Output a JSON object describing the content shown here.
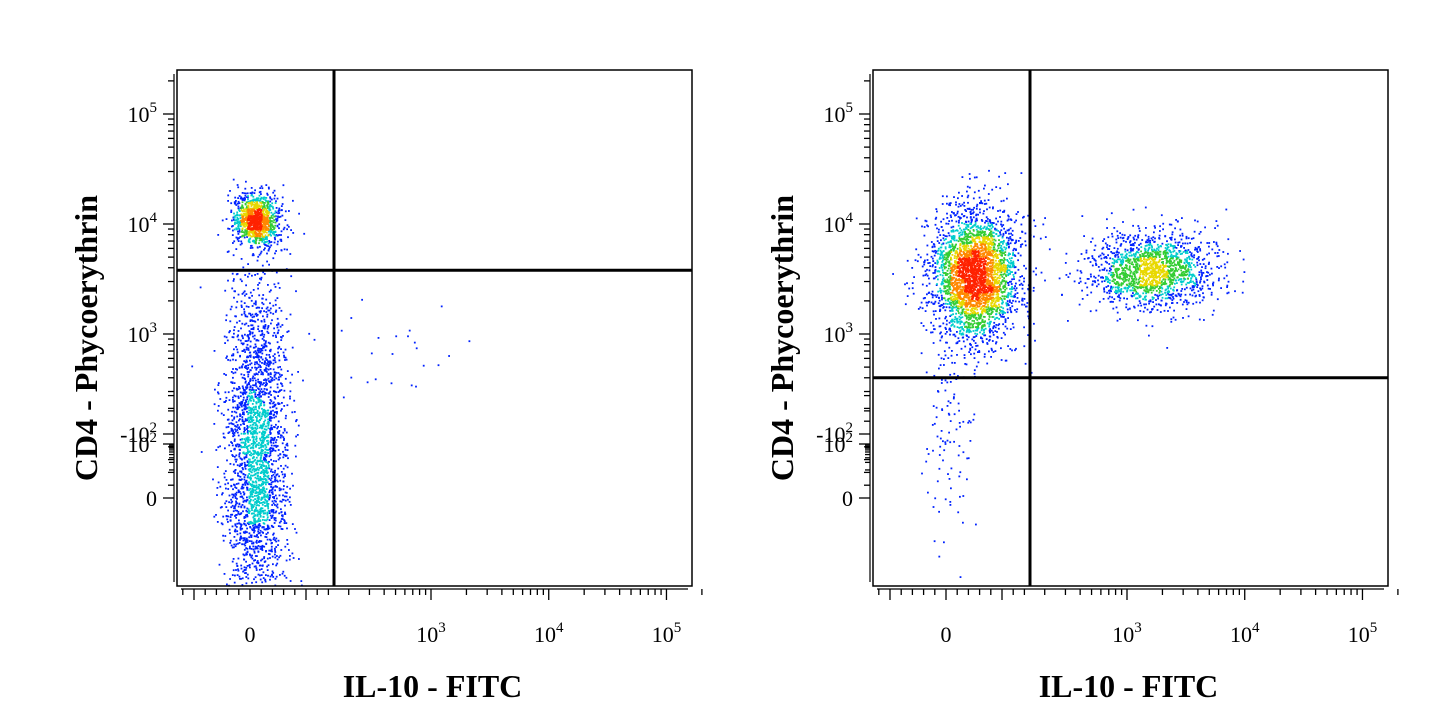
{
  "chart_data": [
    {
      "type": "scatter",
      "subtype": "flow-cytometry-density-dot-plot",
      "xlabel": "IL-10 - FITC",
      "ylabel": "CD4 - Phycoerythrin",
      "xscale": "biexponential",
      "yscale": "biexponential",
      "x_tick_labels": [
        {
          "base": "0",
          "exp": "",
          "value": 0
        },
        {
          "base": "10",
          "exp": "3",
          "value": 1000
        },
        {
          "base": "10",
          "exp": "4",
          "value": 10000
        },
        {
          "base": "10",
          "exp": "5",
          "value": 100000
        }
      ],
      "y_tick_labels": [
        {
          "base": "-10",
          "exp": "2",
          "value": -100
        },
        {
          "base": "0",
          "exp": "",
          "value": 0
        },
        {
          "base": "10",
          "exp": "2",
          "value": 100
        },
        {
          "base": "10",
          "exp": "3",
          "value": 1000
        },
        {
          "base": "10",
          "exp": "4",
          "value": 10000
        },
        {
          "base": "10",
          "exp": "5",
          "value": 100000
        }
      ],
      "xlim": [
        -300,
        250000
      ],
      "ylim": [
        -180,
        250000
      ],
      "quadrant_gate": {
        "x": 150,
        "y": 3800
      },
      "populations": [
        {
          "x_center": 10,
          "x_spread": 0.12,
          "y_center": 11000,
          "y_spread": 0.12,
          "count": 1100
        },
        {
          "x_center": 10,
          "x_spread": 0.16,
          "y_center": 40,
          "y_spread": 0.75,
          "count": 2500
        },
        {
          "x_center": 20,
          "x_spread": 0.15,
          "y_center": 900,
          "y_spread": 0.35,
          "count": 90
        },
        {
          "x_center": 450,
          "x_spread": 0.45,
          "y_center": 800,
          "y_spread": 0.25,
          "count": 25
        }
      ],
      "grid": false,
      "legend": "none"
    },
    {
      "type": "scatter",
      "subtype": "flow-cytometry-density-dot-plot",
      "xlabel": "IL-10 - FITC",
      "ylabel": "CD4 - Phycoerythrin",
      "xscale": "biexponential",
      "yscale": "biexponential",
      "x_tick_labels": [
        {
          "base": "0",
          "exp": "",
          "value": 0
        },
        {
          "base": "10",
          "exp": "3",
          "value": 1000
        },
        {
          "base": "10",
          "exp": "4",
          "value": 10000
        },
        {
          "base": "10",
          "exp": "5",
          "value": 100000
        }
      ],
      "y_tick_labels": [
        {
          "base": "-10",
          "exp": "2",
          "value": -100
        },
        {
          "base": "0",
          "exp": "",
          "value": 0
        },
        {
          "base": "10",
          "exp": "2",
          "value": 100
        },
        {
          "base": "10",
          "exp": "3",
          "value": 1000
        },
        {
          "base": "10",
          "exp": "4",
          "value": 10000
        },
        {
          "base": "10",
          "exp": "5",
          "value": 100000
        }
      ],
      "xlim": [
        -300,
        250000
      ],
      "ylim": [
        -180,
        250000
      ],
      "quadrant_gate": {
        "x": 150,
        "y": 400
      },
      "populations": [
        {
          "x_center": 50,
          "x_spread": 0.22,
          "y_center": 3500,
          "y_spread": 0.3,
          "count": 3200
        },
        {
          "x_center": 1600,
          "x_spread": 0.32,
          "y_center": 3800,
          "y_spread": 0.17,
          "count": 1600
        },
        {
          "x_center": 5,
          "x_spread": 0.12,
          "y_center": 150,
          "y_spread": 0.6,
          "count": 110
        }
      ],
      "grid": false,
      "legend": "none"
    }
  ]
}
